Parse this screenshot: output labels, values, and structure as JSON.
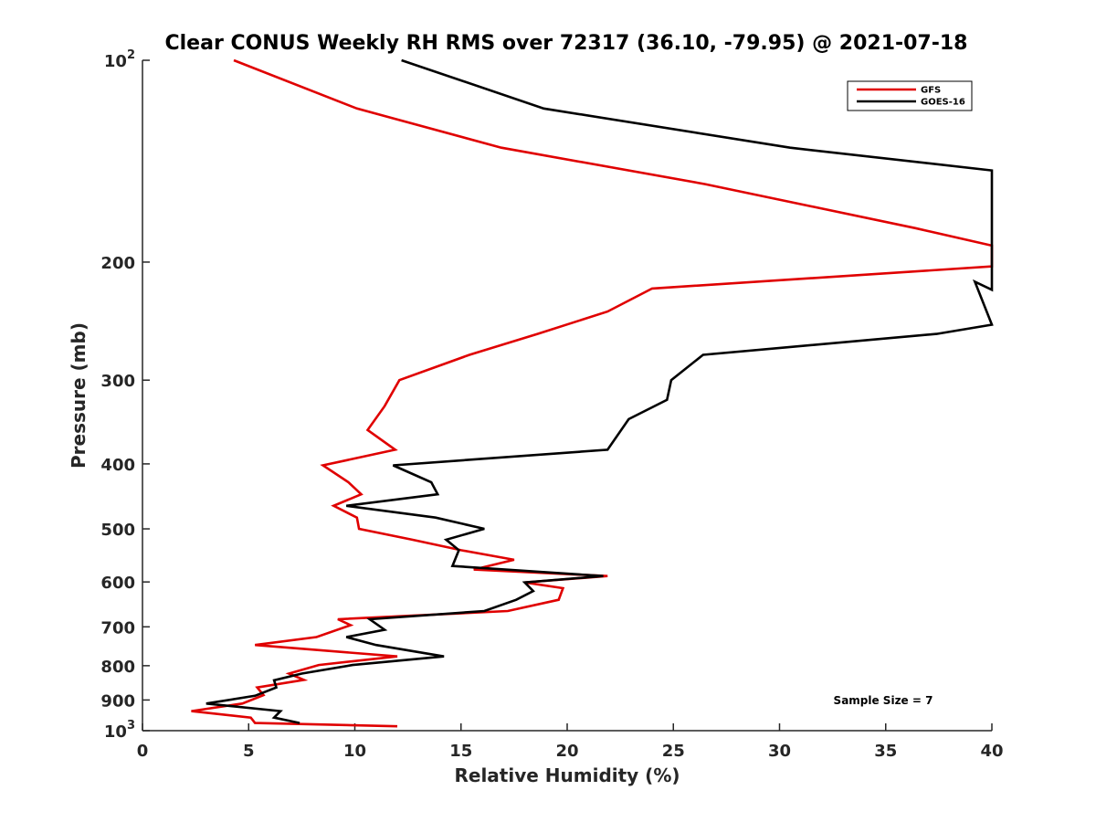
{
  "chart_data": {
    "type": "line",
    "title": "Clear CONUS Weekly RH RMS over 72317 (36.10, -79.95) @ 2021-07-18",
    "xlabel": "Relative Humidity (%)",
    "ylabel": "Pressure (mb)",
    "xlim": [
      0,
      40
    ],
    "ylim": [
      100,
      1000
    ],
    "y_scale": "log",
    "y_reversed": true,
    "x_ticks": [
      0,
      5,
      10,
      15,
      20,
      25,
      30,
      35,
      40
    ],
    "x_tick_labels": [
      "0",
      "5",
      "10",
      "15",
      "20",
      "25",
      "30",
      "35",
      "40"
    ],
    "y_ticks": [
      100,
      200,
      300,
      400,
      500,
      600,
      700,
      800,
      900,
      1000
    ],
    "y_tick_labels": [
      {
        "base": "10",
        "exp": "2"
      },
      {
        "base": "200",
        "exp": ""
      },
      {
        "base": "300",
        "exp": ""
      },
      {
        "base": "400",
        "exp": ""
      },
      {
        "base": "500",
        "exp": ""
      },
      {
        "base": "600",
        "exp": ""
      },
      {
        "base": "700",
        "exp": ""
      },
      {
        "base": "800",
        "exp": ""
      },
      {
        "base": "900",
        "exp": ""
      },
      {
        "base": "10",
        "exp": "3"
      }
    ],
    "grid": false,
    "legend_position": "top-right",
    "annotation": "Sample Size = 7",
    "series": [
      {
        "name": "GFS",
        "color": "#e00000",
        "points": [
          [
            4.3,
            100
          ],
          [
            10.1,
            118
          ],
          [
            16.9,
            135
          ],
          [
            26.5,
            153
          ],
          [
            36.4,
            178
          ],
          [
            40,
            189
          ],
          [
            40,
            203
          ],
          [
            24.0,
            219
          ],
          [
            21.9,
            237
          ],
          [
            18.6,
            256
          ],
          [
            15.4,
            275
          ],
          [
            12.1,
            300
          ],
          [
            11.4,
            328
          ],
          [
            10.6,
            356
          ],
          [
            11.9,
            381
          ],
          [
            8.5,
            402
          ],
          [
            9.7,
            426
          ],
          [
            10.3,
            444
          ],
          [
            9.0,
            462
          ],
          [
            10.1,
            481
          ],
          [
            10.2,
            500
          ],
          [
            12.7,
            519
          ],
          [
            15.0,
            538
          ],
          [
            17.5,
            556
          ],
          [
            15.6,
            575
          ],
          [
            21.9,
            588
          ],
          [
            18.0,
            601
          ],
          [
            19.8,
            613
          ],
          [
            19.6,
            638
          ],
          [
            17.2,
            663
          ],
          [
            9.2,
            682
          ],
          [
            9.8,
            696
          ],
          [
            8.2,
            725
          ],
          [
            5.3,
            745
          ],
          [
            12.0,
            775
          ],
          [
            8.3,
            798
          ],
          [
            6.9,
            822
          ],
          [
            7.6,
            840
          ],
          [
            5.4,
            862
          ],
          [
            5.7,
            885
          ],
          [
            4.7,
            911
          ],
          [
            2.3,
            935
          ],
          [
            5.1,
            956
          ],
          [
            5.3,
            974
          ],
          [
            12.0,
            985
          ]
        ]
      },
      {
        "name": "GOES-16",
        "color": "#000000",
        "points": [
          [
            12.2,
            100
          ],
          [
            18.9,
            118
          ],
          [
            30.5,
            135
          ],
          [
            40,
            146
          ],
          [
            40,
            220
          ],
          [
            39.2,
            214
          ],
          [
            40,
            248
          ],
          [
            37.4,
            256
          ],
          [
            26.4,
            275
          ],
          [
            24.9,
            300
          ],
          [
            24.7,
            321
          ],
          [
            22.9,
            343
          ],
          [
            21.9,
            381
          ],
          [
            11.8,
            402
          ],
          [
            13.6,
            426
          ],
          [
            13.9,
            444
          ],
          [
            9.6,
            462
          ],
          [
            13.8,
            481
          ],
          [
            16.1,
            500
          ],
          [
            14.3,
            519
          ],
          [
            14.9,
            538
          ],
          [
            14.6,
            568
          ],
          [
            21.7,
            588
          ],
          [
            18.0,
            601
          ],
          [
            18.4,
            619
          ],
          [
            17.6,
            638
          ],
          [
            16.1,
            663
          ],
          [
            10.7,
            682
          ],
          [
            11.4,
            707
          ],
          [
            9.6,
            725
          ],
          [
            11.0,
            745
          ],
          [
            14.2,
            775
          ],
          [
            9.9,
            798
          ],
          [
            7.5,
            822
          ],
          [
            6.2,
            841
          ],
          [
            6.3,
            862
          ],
          [
            5.3,
            887
          ],
          [
            3.0,
            911
          ],
          [
            6.5,
            935
          ],
          [
            6.2,
            956
          ],
          [
            7.4,
            974
          ]
        ]
      }
    ]
  }
}
